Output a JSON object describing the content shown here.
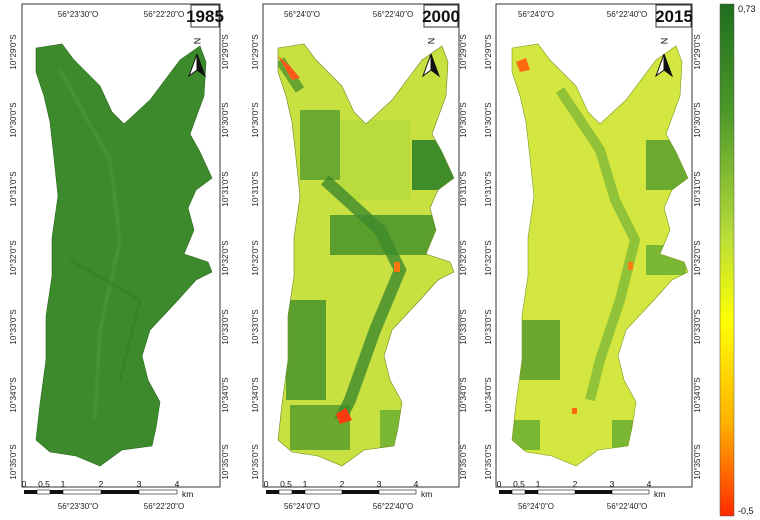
{
  "panels": [
    {
      "year": "1985",
      "top_lon": [
        "56°23'30\"O",
        "56°22'20\"O"
      ],
      "bottom_lon": [
        "56°23'30\"O",
        "56°22'20\"O"
      ],
      "left_lat": [
        "10°29'0\"S",
        "10°30'0\"S",
        "10°31'0\"S",
        "10°32'0\"S",
        "10°33'0\"S",
        "10°34'0\"S",
        "10°35'0\"S"
      ],
      "right_lat": [
        "10°29'0\"S",
        "10°30'0\"S",
        "10°31'0\"S",
        "10°32'0\"S",
        "10°33'0\"S",
        "10°34'0\"S",
        "10°35'0\"S"
      ],
      "north": "N",
      "scale_ticks": [
        "0",
        "0,5",
        "1",
        "2",
        "3",
        "4"
      ],
      "scale_unit": "km",
      "base_color": "#3d8a2c"
    },
    {
      "year": "2000",
      "top_lon": [
        "56°24'0\"O",
        "56°22'40\"O"
      ],
      "bottom_lon": [
        "56°24'0\"O",
        "56°22'40\"O"
      ],
      "left_lat": [
        "10°29'0\"S",
        "10°30'0\"S",
        "10°31'0\"S",
        "10°32'0\"S",
        "10°33'0\"S",
        "10°34'0\"S",
        "10°35'0\"S"
      ],
      "right_lat": [
        "10°29'0\"S",
        "10°30'0\"S",
        "10°31'0\"S",
        "10°32'0\"S",
        "10°33'0\"S",
        "10°34'0\"S",
        "10°35'0\"S"
      ],
      "north": "N",
      "scale_ticks": [
        "0",
        "0,5",
        "1",
        "2",
        "3",
        "4"
      ],
      "scale_unit": "km",
      "base_color": "#c8e040"
    },
    {
      "year": "2015",
      "top_lon": [
        "56°24'0\"O",
        "56°22'40\"O"
      ],
      "bottom_lon": [
        "56°24'0\"O",
        "56°22'40\"O"
      ],
      "left_lat": [
        "10°29'0\"S",
        "10°30'0\"S",
        "10°31'0\"S",
        "10°32'0\"S",
        "10°33'0\"S",
        "10°34'0\"S",
        "10°35'0\"S"
      ],
      "right_lat": [
        "10°29'0\"S",
        "10°30'0\"S",
        "10°31'0\"S",
        "10°32'0\"S",
        "10°33'0\"S",
        "10°34'0\"S",
        "10°35'0\"S"
      ],
      "north": "N",
      "scale_ticks": [
        "0",
        "0,5",
        "1",
        "2",
        "3",
        "4"
      ],
      "scale_unit": "km",
      "base_color": "#d4e640"
    }
  ],
  "legend": {
    "max_label": "0,73",
    "min_label": "-0,5",
    "colors": [
      "#1f6e1f",
      "#5fa62c",
      "#b7dc3a",
      "#ffff00",
      "#ffb000",
      "#ff2a00"
    ]
  }
}
